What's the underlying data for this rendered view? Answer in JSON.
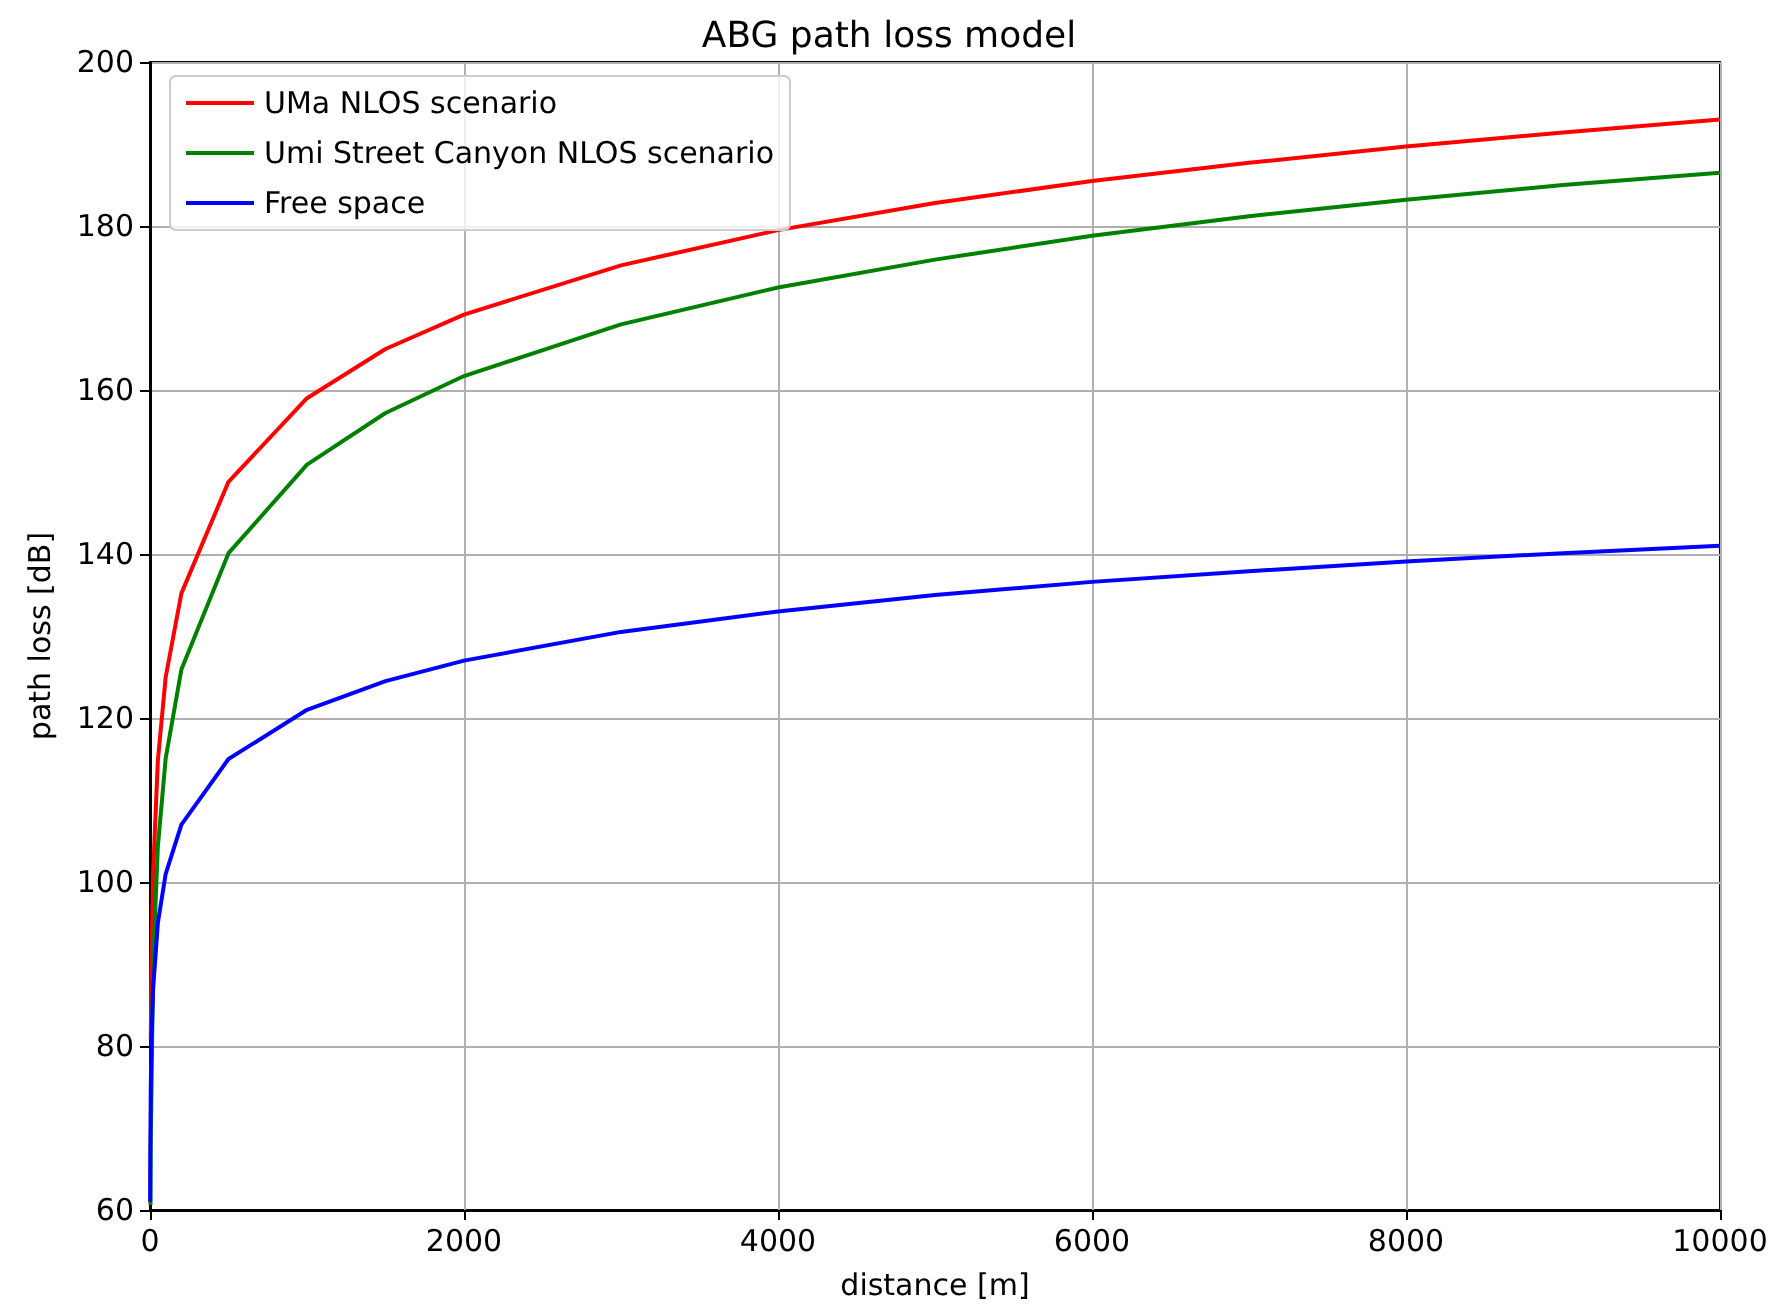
{
  "chart_data": {
    "type": "line",
    "title": "ABG path loss model",
    "xlabel": "distance [m]",
    "ylabel": "path loss [dB]",
    "xlim": [
      0,
      10000
    ],
    "xticks": [
      0,
      2000,
      4000,
      6000,
      8000,
      10000
    ],
    "ylim": [
      60,
      200
    ],
    "yticks": [
      60,
      80,
      100,
      120,
      140,
      160,
      180,
      200
    ],
    "grid": true,
    "legend": "top left",
    "marker": "none",
    "line_style": "solid",
    "series": [
      {
        "name": "UMa NLOS scenario",
        "color": "#ff0000",
        "x": [
          5,
          10,
          20,
          50,
          100,
          200,
          500,
          1000,
          1500,
          2000,
          3000,
          4000,
          5000,
          6000,
          7000,
          8000,
          9000,
          10000
        ],
        "values": [
          80.8,
          91,
          101.2,
          114.8,
          125,
          135.2,
          148.8,
          159,
          165,
          169.2,
          175.2,
          179.5,
          182.8,
          185.5,
          187.7,
          189.7,
          191.4,
          193
        ]
      },
      {
        "name": "Umi Street Canyon NLOS scenario",
        "color": "#008000",
        "x": [
          3,
          5,
          20,
          50,
          100,
          200,
          500,
          1000,
          1500,
          2000,
          3000,
          4000,
          5000,
          6000,
          7000,
          8000,
          9000,
          10000
        ],
        "values": [
          60.6,
          68.5,
          90.1,
          104.3,
          115.1,
          125.9,
          140.1,
          150.9,
          157.2,
          161.7,
          168,
          172.5,
          175.9,
          178.8,
          181.2,
          183.2,
          185,
          186.5
        ]
      },
      {
        "name": "Free space",
        "color": "#0000ff",
        "x": [
          1,
          2,
          5,
          10,
          20,
          50,
          100,
          200,
          500,
          1000,
          1500,
          2000,
          3000,
          4000,
          5000,
          6000,
          7000,
          8000,
          9000,
          10000
        ],
        "values": [
          61,
          67,
          75,
          81,
          87,
          95,
          101,
          107,
          115,
          121,
          124.5,
          127,
          130.5,
          133,
          135,
          136.6,
          137.9,
          139.1,
          140.1,
          141
        ]
      }
    ]
  }
}
